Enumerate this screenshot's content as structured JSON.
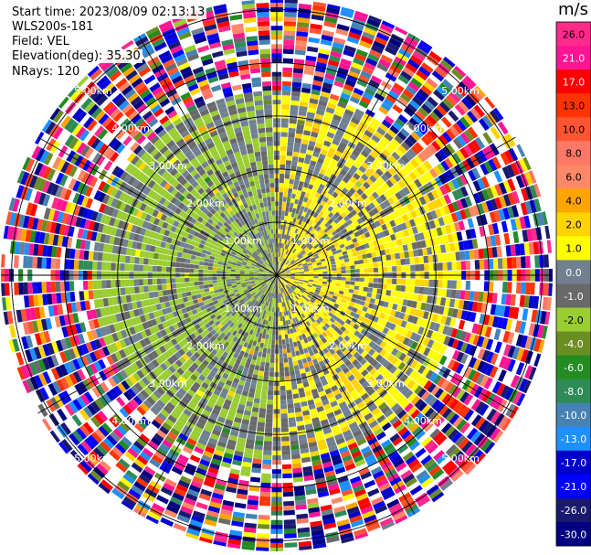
{
  "header": {
    "start_time": "Start time: 2023/08/09 02:13:13",
    "station": "WLS200s-181",
    "field": "Field: VEL",
    "elevation": "Elevation(deg): 35.30",
    "nrays": "NRays: 120"
  },
  "chart_data": {
    "type": "heatmap",
    "subtype": "radar-ppi",
    "field": "VEL",
    "units": "m/s",
    "nrays": 120,
    "elevation_deg": 35.3,
    "range_rings_km": [
      1.0,
      2.0,
      3.0,
      4.0,
      5.0
    ],
    "range_labels": [
      "1.00km",
      "2.00km",
      "3.00km",
      "4.00km",
      "5.00km"
    ],
    "max_range_km": 5.2,
    "colorbar": {
      "title": "m/s",
      "ticks": [
        "26.0",
        "21.0",
        "17.0",
        "13.0",
        "10.0",
        "8.0",
        "6.0",
        "4.0",
        "2.0",
        "1.0",
        "0.0",
        "-1.0",
        "-2.0",
        "-4.0",
        "-6.0",
        "-8.0",
        "-10.0",
        "-13.0",
        "-17.0",
        "-21.0",
        "-26.0",
        "-30.0"
      ],
      "colors": [
        "#ff2a8a",
        "#ff1493",
        "#ff0000",
        "#ff3300",
        "#ff5533",
        "#ff7766",
        "#ff8866",
        "#ffa500",
        "#ffd400",
        "#ffff00",
        "#708090",
        "#696969",
        "#9acd32",
        "#6b8e23",
        "#228b22",
        "#2e8b57",
        "#4682b4",
        "#1e90ff",
        "#0000cd",
        "#0000ff",
        "#191970",
        "#000080"
      ]
    },
    "velocity_pattern": {
      "near_field_max_km": 3.5,
      "west_sector_mean_ms": -1.5,
      "east_sector_mean_ms": 2.0,
      "far_field_description": "noise / aliased values beyond ~3.5 km"
    }
  }
}
